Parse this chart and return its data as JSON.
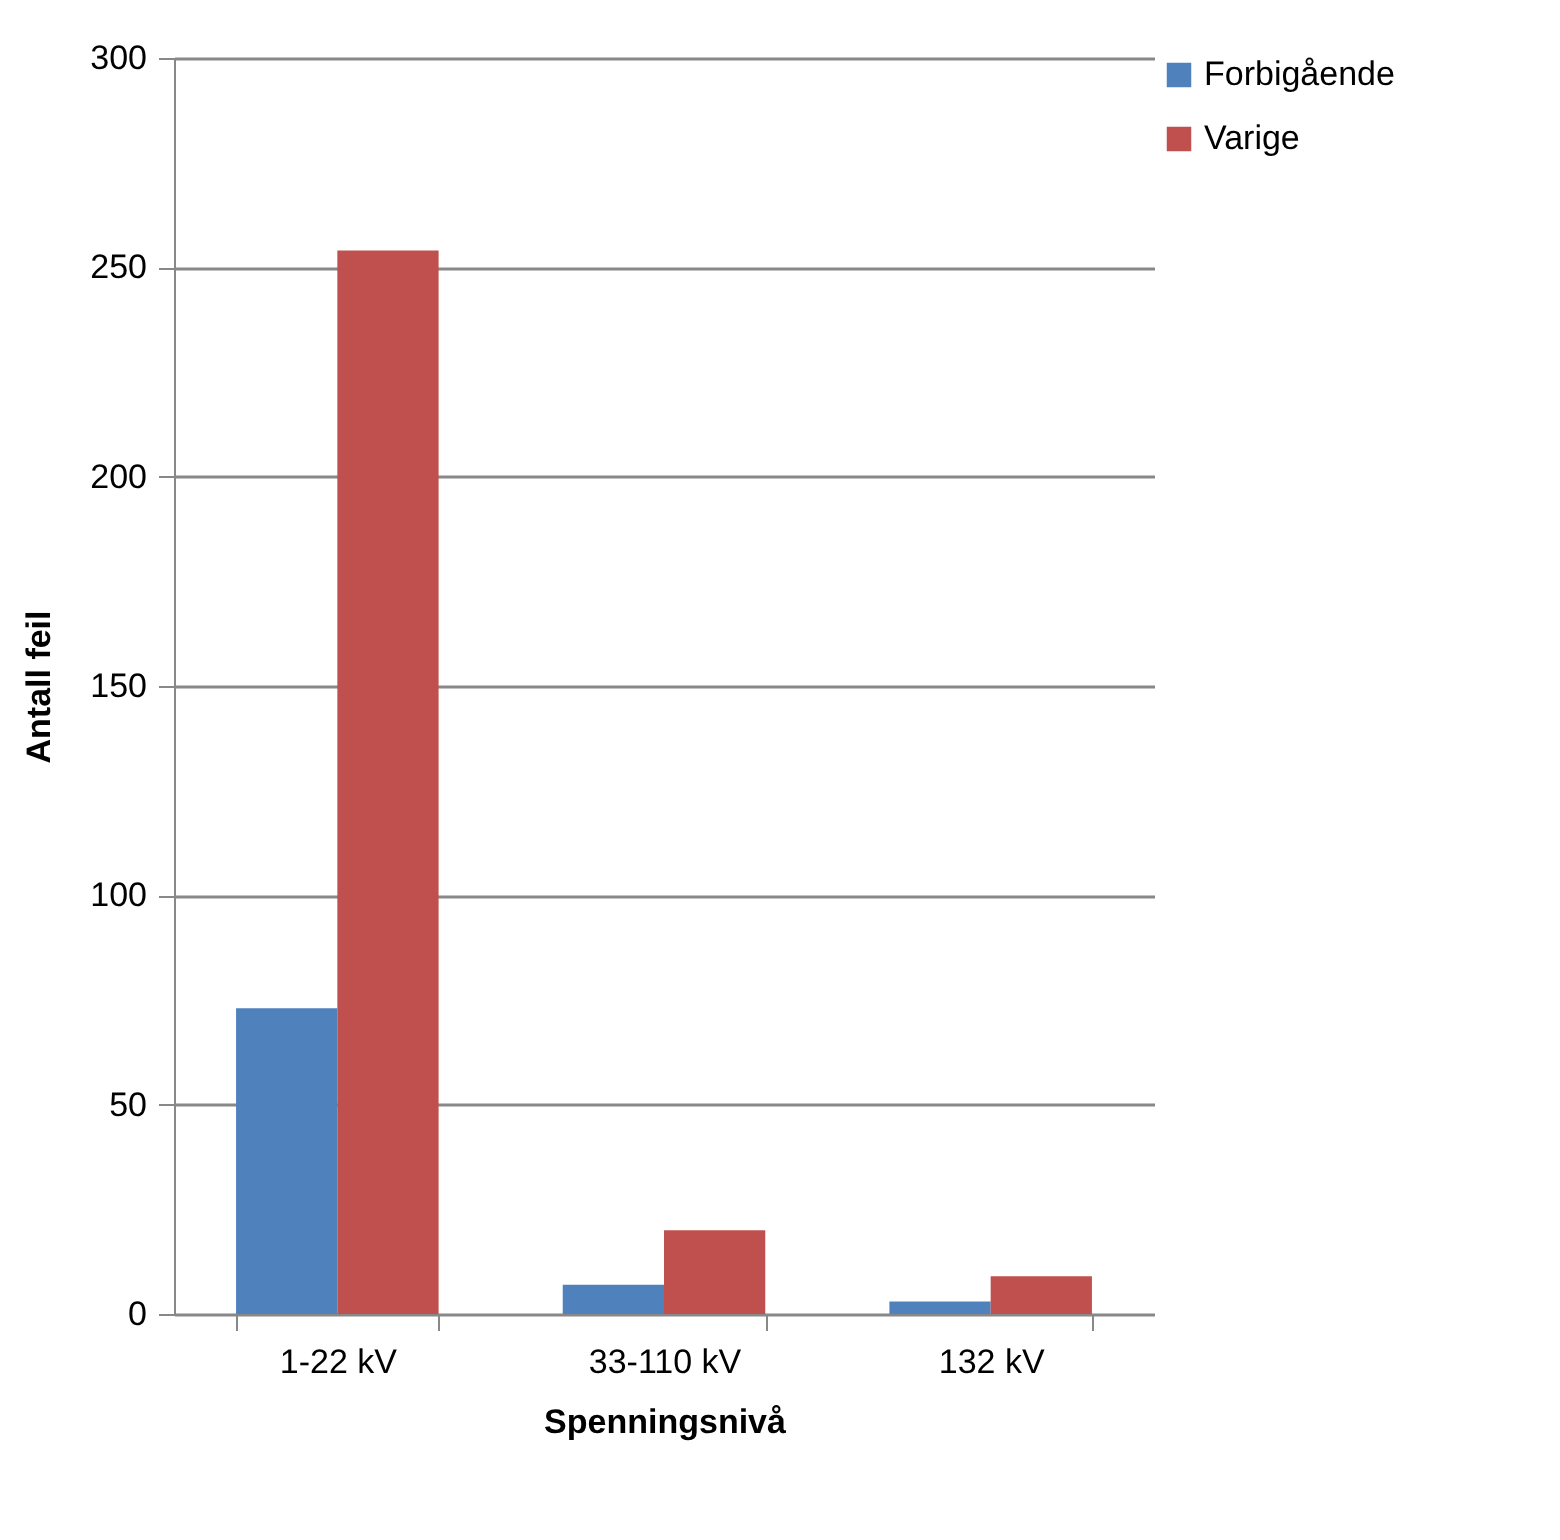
{
  "chart_data": {
    "type": "bar",
    "xlabel": "Spenningsnivå",
    "ylabel": "Antall feil",
    "categories": [
      "1-22 kV",
      "33-110 kV",
      "132 kV"
    ],
    "series": [
      {
        "name": "Forbigående",
        "color": "#4f81bd",
        "values": [
          73,
          7,
          3
        ]
      },
      {
        "name": "Varige",
        "color": "#c0504d",
        "values": [
          254,
          20,
          9
        ]
      }
    ],
    "ylim": [
      0,
      300
    ],
    "yticks": [
      0,
      50,
      100,
      150,
      200,
      250,
      300
    ],
    "grid": "y",
    "legend": "right"
  }
}
